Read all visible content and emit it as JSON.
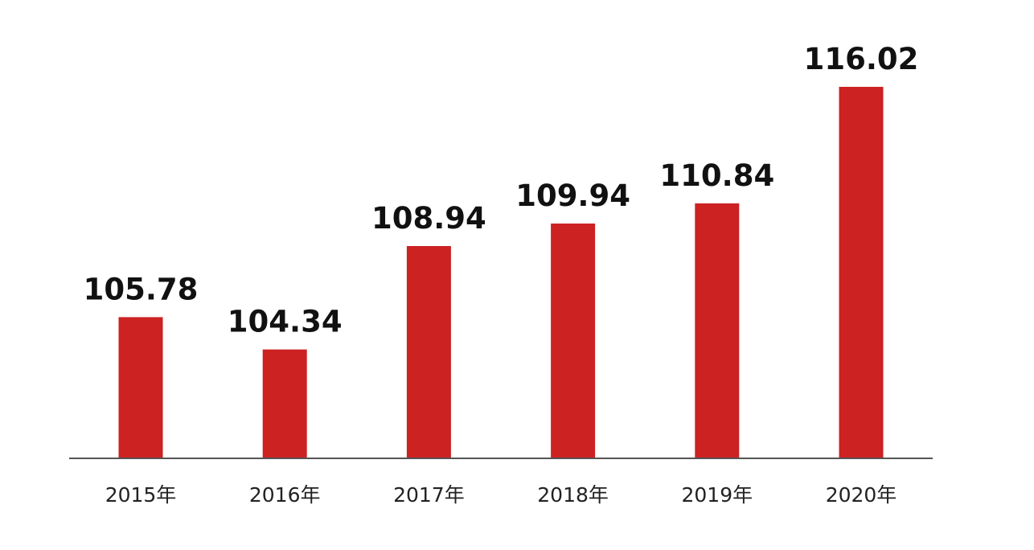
{
  "chart_data": {
    "type": "bar",
    "categories": [
      "2015年",
      "2016年",
      "2017年",
      "2018年",
      "2019年",
      "2020年"
    ],
    "values": [
      105.78,
      104.34,
      108.94,
      109.94,
      110.84,
      116.02
    ],
    "data_labels": [
      "105.78",
      "104.34",
      "108.94",
      "109.94",
      "110.84",
      "116.02"
    ],
    "title": "",
    "xlabel": "",
    "ylabel": "",
    "ylim": [
      99.5,
      118.0
    ],
    "grid": false,
    "legend": "none",
    "bar_color": "#cc2222",
    "axis_color": "#555555"
  }
}
